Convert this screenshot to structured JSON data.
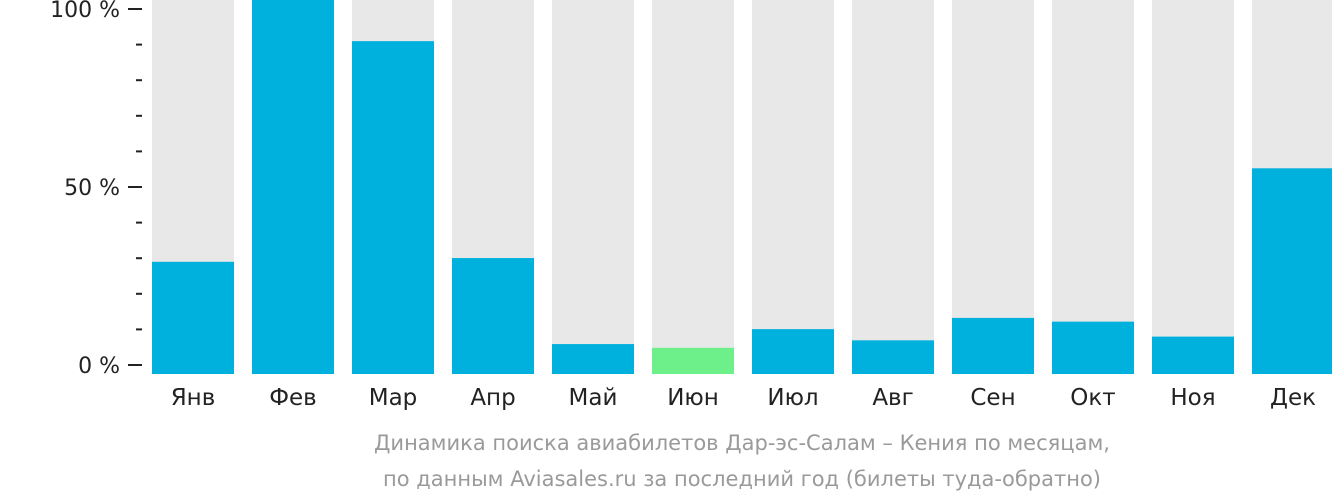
{
  "chart_data": {
    "type": "bar",
    "categories": [
      "Янв",
      "Фев",
      "Мар",
      "Апр",
      "Май",
      "Июн",
      "Июл",
      "Авг",
      "Сен",
      "Окт",
      "Ноя",
      "Дек"
    ],
    "values": [
      30,
      100,
      89,
      31,
      8,
      7,
      12,
      9,
      15,
      14,
      10,
      55
    ],
    "y_ticks": [
      "0 %",
      "50 %",
      "100 %"
    ],
    "ylim": [
      0,
      100
    ],
    "highlight_category": "Июн",
    "colors": {
      "bar": "#00b0dd",
      "highlight": "#6df08a",
      "track": "#e8e8e8",
      "axis": "#222222",
      "caption": "#9a9a9a"
    },
    "caption": [
      "Динамика поиска авиабилетов Дар-эс-Салам – Кения по месяцам,",
      "по данным Aviasales.ru за последний год (билеты туда-обратно)"
    ]
  }
}
